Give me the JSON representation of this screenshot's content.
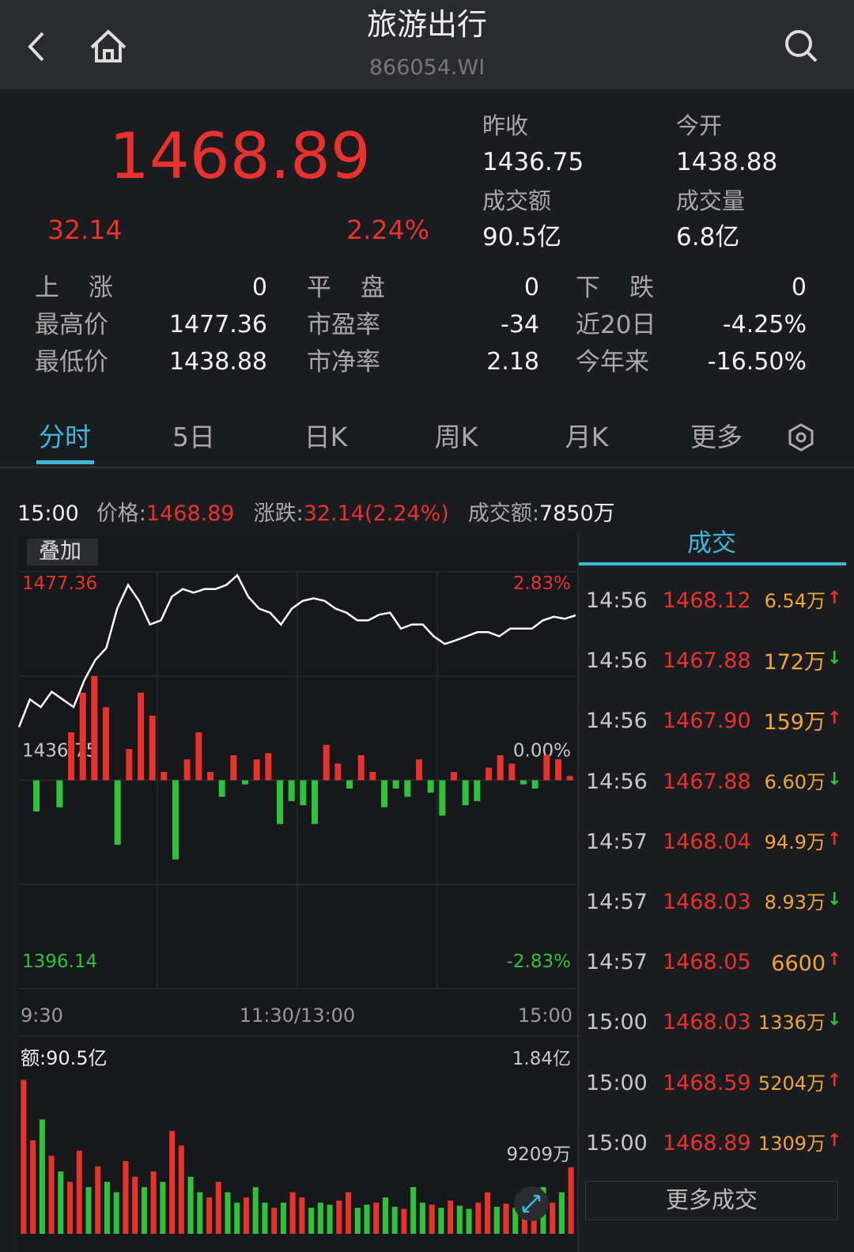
{
  "header": {
    "title": "旅游出行",
    "code": "866054.WI"
  },
  "quote": {
    "price": "1468.89",
    "change": "32.14",
    "change_pct": "2.24%",
    "fields": [
      {
        "label": "昨收",
        "value": "1436.75"
      },
      {
        "label": "今开",
        "value": "1438.88"
      },
      {
        "label": "成交额",
        "value": "90.5亿"
      },
      {
        "label": "成交量",
        "value": "6.8亿"
      }
    ]
  },
  "stats": [
    [
      {
        "label": "上涨",
        "value": "0"
      },
      {
        "label": "平盘",
        "value": "0"
      },
      {
        "label": "下跌",
        "value": "0"
      }
    ],
    [
      {
        "label": "最高价",
        "value": "1477.36"
      },
      {
        "label": "市盈率",
        "value": "-34"
      },
      {
        "label": "近20日",
        "value": "-4.25%"
      }
    ],
    [
      {
        "label": "最低价",
        "value": "1438.88"
      },
      {
        "label": "市净率",
        "value": "2.18"
      },
      {
        "label": "今年来",
        "value": "-16.50%"
      }
    ]
  ],
  "tabs": [
    "分时",
    "5日",
    "日K",
    "周K",
    "月K",
    "更多"
  ],
  "info_bar": {
    "time": "15:00",
    "price_label": "价格:",
    "price": "1468.89",
    "change_label": "涨跌:",
    "change": "32.14(2.24%)",
    "amount_label": "成交额:",
    "amount": "7850万"
  },
  "chart_data": {
    "type": "line",
    "overlay_button": "叠加",
    "ylim": [
      1396.14,
      1477.36
    ],
    "yticks": [
      1396.14,
      1436.75,
      1477.36
    ],
    "y2lim": [
      -2.83,
      2.83
    ],
    "y2ticks": [
      {
        "value": -2.83,
        "label": "-2.83%"
      },
      {
        "value": 0,
        "label": "0.00%"
      },
      {
        "value": 2.83,
        "label": "2.83%"
      }
    ],
    "x_labels": [
      "9:30",
      "11:30/13:00",
      "15:00"
    ],
    "series": [
      {
        "color": "#ffffff",
        "values": [
          1447.1,
          1452.5,
          1451.0,
          1454.0,
          1452.5,
          1451.0,
          1456.3,
          1460.2,
          1462.5,
          1470.2,
          1474.8,
          1471.7,
          1467.1,
          1467.9,
          1472.5,
          1474.0,
          1473.3,
          1474.0,
          1474.0,
          1474.8,
          1476.7,
          1472.5,
          1470.2,
          1469.4,
          1467.1,
          1470.2,
          1471.7,
          1472.2,
          1471.7,
          1470.2,
          1469.4,
          1467.9,
          1467.9,
          1469.0,
          1469.4,
          1466.3,
          1467.1,
          1467.1,
          1464.8,
          1463.3,
          1464.0,
          1464.8,
          1465.6,
          1465.6,
          1464.8,
          1466.3,
          1466.3,
          1466.3,
          1467.9,
          1468.6,
          1468.2,
          1468.89
        ]
      }
    ],
    "flow": {
      "ylim": [
        -100,
        100
      ],
      "up_color": "#e8322e",
      "down_color": "#2fc23c",
      "values": [
        0,
        -15,
        0,
        -13,
        23,
        42,
        50,
        35,
        -31,
        15,
        42,
        31,
        4,
        -38,
        10,
        23,
        4,
        -8,
        12,
        -2,
        10,
        13,
        -21,
        -10,
        -12,
        -21,
        17,
        8,
        -4,
        12,
        4,
        -13,
        -4,
        -8,
        10,
        -6,
        -17,
        4,
        -12,
        -10,
        6,
        12,
        8,
        -2,
        -4,
        12,
        10,
        2
      ]
    },
    "volume": {
      "label": "额:90.5亿",
      "ylim": [
        0,
        18418
      ],
      "yticks": [
        {
          "value": 18418,
          "label": "1.84亿"
        },
        {
          "value": 9209,
          "label": "9209万"
        }
      ],
      "values": [
        14800,
        9000,
        11000,
        7500,
        6000,
        5000,
        8000,
        4500,
        6500,
        5000,
        4000,
        7000,
        5500,
        4500,
        6000,
        5000,
        9900,
        8500,
        5500,
        4000,
        3500,
        5000,
        4000,
        3000,
        3500,
        4500,
        3000,
        2500,
        3000,
        4000,
        3500,
        2500,
        3000,
        2800,
        3200,
        4000,
        2500,
        2800,
        3000,
        3500,
        2600,
        2400,
        4500,
        3000,
        2800,
        2500,
        3200,
        2700,
        2400,
        3000,
        4000,
        2600,
        2900,
        2500,
        3500,
        2800,
        4500,
        3000,
        4000,
        6400
      ],
      "colors": [
        "#e8322e",
        "#e8322e",
        "#2fc23c",
        "#e8322e",
        "#2fc23c",
        "#e8322e",
        "#e8322e",
        "#2fc23c",
        "#e8322e",
        "#2fc23c",
        "#2fc23c",
        "#e8322e",
        "#e8322e",
        "#2fc23c",
        "#e8322e",
        "#2fc23c",
        "#e8322e",
        "#e8322e",
        "#2fc23c",
        "#2fc23c",
        "#e8322e",
        "#e8322e",
        "#2fc23c",
        "#2fc23c",
        "#e8322e",
        "#2fc23c",
        "#2fc23c",
        "#e8322e",
        "#2fc23c",
        "#e8322e",
        "#e8322e",
        "#2fc23c",
        "#2fc23c",
        "#2fc23c",
        "#e8322e",
        "#e8322e",
        "#2fc23c",
        "#2fc23c",
        "#e8322e",
        "#2fc23c",
        "#2fc23c",
        "#e8322e",
        "#2fc23c",
        "#2fc23c",
        "#e8322e",
        "#2fc23c",
        "#e8322e",
        "#2fc23c",
        "#2fc23c",
        "#e8322e",
        "#e8322e",
        "#2fc23c",
        "#e8322e",
        "#2fc23c",
        "#e8322e",
        "#e8322e",
        "#2fc23c",
        "#e8322e",
        "#2fc23c",
        "#e8322e"
      ]
    }
  },
  "trades": {
    "title": "成交",
    "more": "更多成交",
    "rows": [
      {
        "time": "14:56",
        "price": "1468.12",
        "volume": "6.54万",
        "arrow": "↑"
      },
      {
        "time": "14:56",
        "price": "1467.88",
        "volume": "172万",
        "arrow": "↓"
      },
      {
        "time": "14:56",
        "price": "1467.90",
        "volume": "159万",
        "arrow": "↑"
      },
      {
        "time": "14:56",
        "price": "1467.88",
        "volume": "6.60万",
        "arrow": "↓"
      },
      {
        "time": "14:57",
        "price": "1468.04",
        "volume": "94.9万",
        "arrow": "↑"
      },
      {
        "time": "14:57",
        "price": "1468.03",
        "volume": "8.93万",
        "arrow": "↓"
      },
      {
        "time": "14:57",
        "price": "1468.05",
        "volume": "6600",
        "arrow": "↑"
      },
      {
        "time": "15:00",
        "price": "1468.03",
        "volume": "1336万",
        "arrow": "↓"
      },
      {
        "time": "15:00",
        "price": "1468.59",
        "volume": "5204万",
        "arrow": "↑"
      },
      {
        "time": "15:00",
        "price": "1468.89",
        "volume": "1309万",
        "arrow": "↑"
      }
    ]
  }
}
